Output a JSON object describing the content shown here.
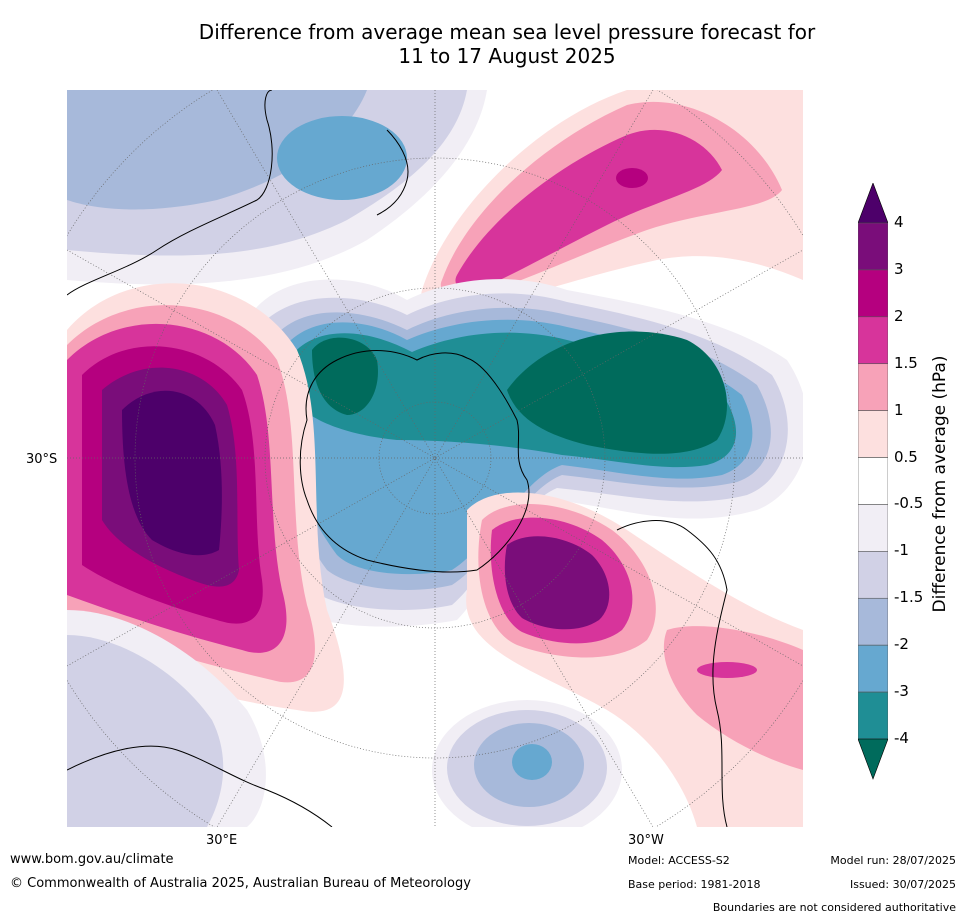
{
  "title_line1": "Difference from average mean sea level pressure forecast for",
  "title_line2": "11 to 17 August 2025",
  "axis_labels": {
    "lat_left": "30°S",
    "lon_bottom_left": "30°E",
    "lon_bottom_right": "30°W"
  },
  "colorbar": {
    "title": "Difference from average (hPa)",
    "ticks": [
      "4",
      "3",
      "2",
      "1.5",
      "1",
      "0.5",
      "-0.5",
      "-1",
      "-1.5",
      "-2",
      "-3",
      "-4"
    ],
    "colors": [
      "#7a0d7a",
      "#b5007f",
      "#d7349b",
      "#f7a2b8",
      "#fde0df",
      "#ffffff",
      "#f1eef5",
      "#d1d1e6",
      "#a7b9da",
      "#66a8d0",
      "#1f8e95"
    ],
    "over_color": "#4d006a",
    "under_color": "#006b5c"
  },
  "footer": {
    "url": "www.bom.gov.au/climate",
    "copyright": "© Commonwealth of Australia 2025, Australian Bureau of Meteorology",
    "model": "Model: ACCESS-S2",
    "base_period": "Base period: 1981-2018",
    "model_run": "Model run: 28/07/2025",
    "issued": "Issued: 30/07/2025",
    "disclaimer": "Boundaries are not considered authoritative"
  }
}
